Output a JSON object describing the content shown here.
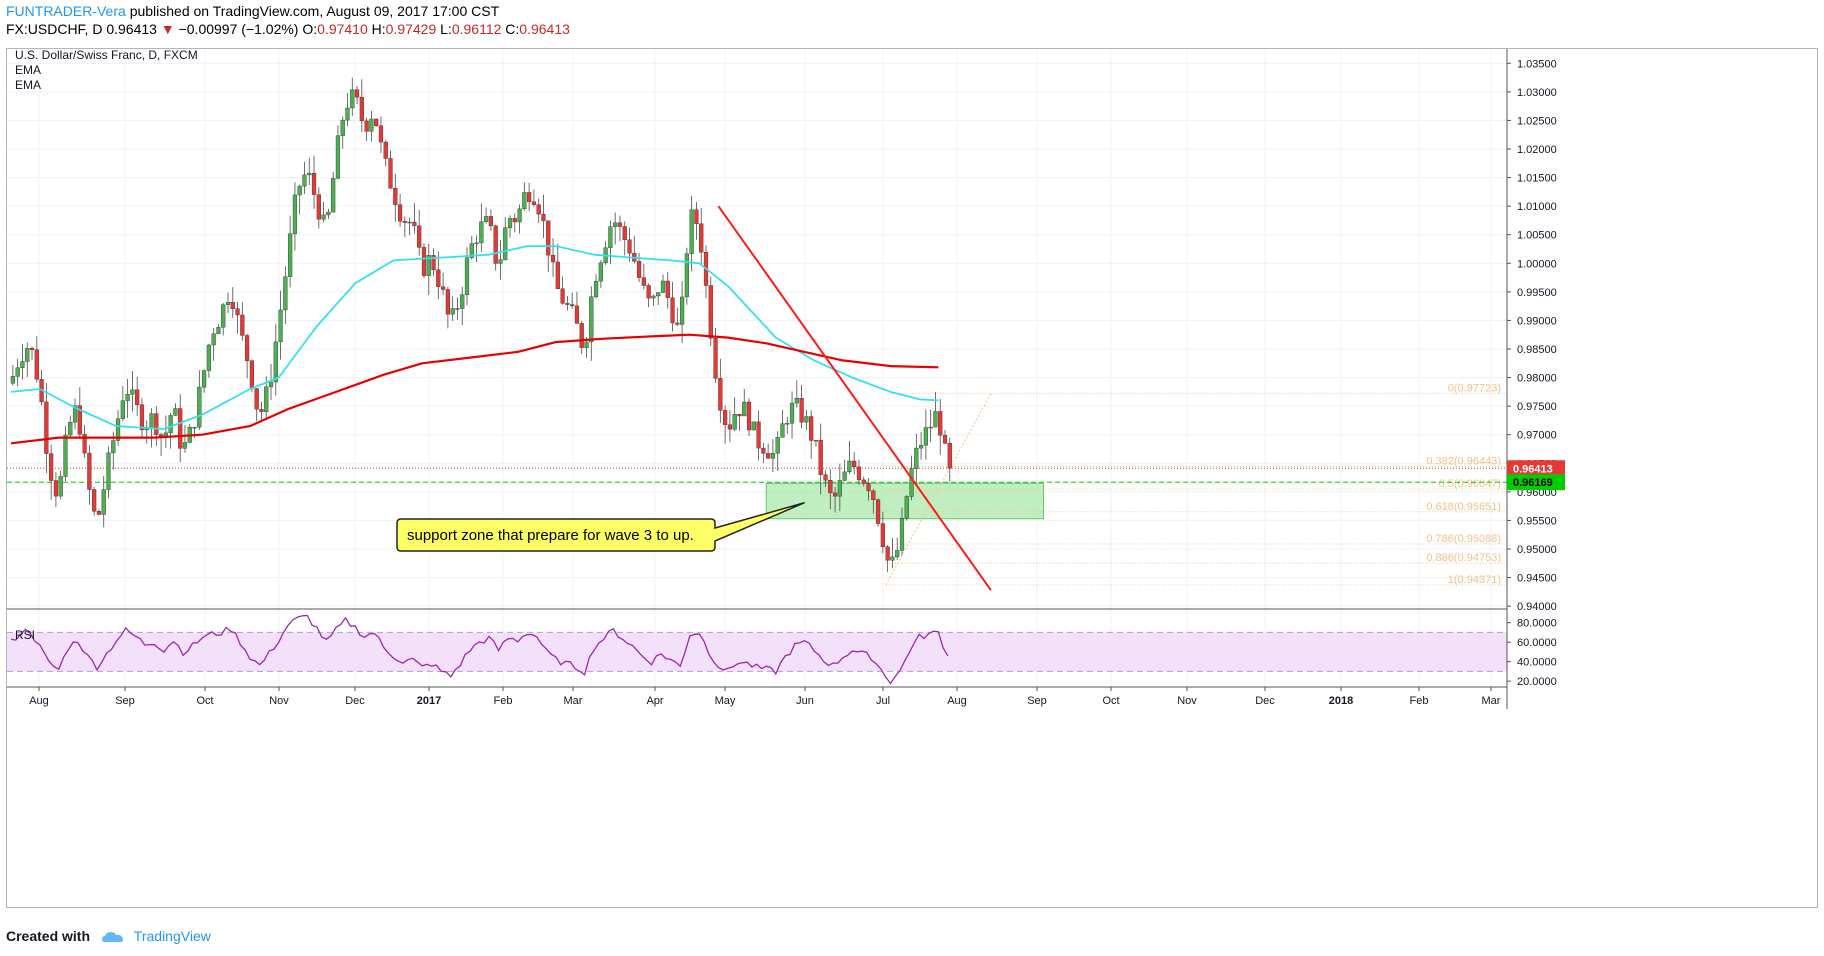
{
  "header": {
    "author": "FUNTRADER-Vera",
    "published": "published on TradingView.com, August 09, 2017 17:00 CST",
    "symbol": "FX:USDCHF, D",
    "last": "0.96413",
    "change_arrow": "▼",
    "change": "−0.00997 (−1.02%)",
    "o_label": "O:",
    "o": "0.97410",
    "h_label": "H:",
    "h": "0.97429",
    "l_label": "L:",
    "l": "0.96112",
    "c_label": "C:",
    "c": "0.96413"
  },
  "legend": {
    "title": "U.S. Dollar/Swiss Franc, D, FXCM",
    "ema1": "EMA",
    "ema2": "EMA",
    "rsi": "RSI"
  },
  "annotation": "support zone that prepare for wave 3 to up.",
  "footer": {
    "created_with": "Created with",
    "brand": "TradingView"
  },
  "colors": {
    "up": "#4caf50",
    "down": "#e53935",
    "ema_fast": "#33e0f0",
    "ema_slow": "#e60000",
    "trendline": "#ff1a1a",
    "zone": "#8ee08e",
    "fib": "#f5c18a",
    "rsi_line": "#9c27b0",
    "rsi_band": "#f3e1fb",
    "price_label": "#e53935",
    "zone_label": "#00cc00"
  },
  "chart_data": {
    "type": "candlestick",
    "title": "U.S. Dollar/Swiss Franc, D, FXCM",
    "ylim": [
      0.9395,
      1.0375
    ],
    "y_ticks": [
      "1.03500",
      "1.03000",
      "1.02500",
      "1.02000",
      "1.01500",
      "1.01000",
      "1.00500",
      "1.00000",
      "0.99500",
      "0.99000",
      "0.98500",
      "0.98000",
      "0.97500",
      "0.97000",
      "0.96500",
      "0.96000",
      "0.95500",
      "0.95000",
      "0.94500",
      "0.94000"
    ],
    "x_ticks": [
      "Aug",
      "Sep",
      "Oct",
      "Nov",
      "Dec",
      "2017",
      "Feb",
      "Mar",
      "Apr",
      "May",
      "Jun",
      "Jul",
      "Aug",
      "Sep",
      "Oct",
      "Nov",
      "Dec",
      "2018",
      "Feb",
      "Mar"
    ],
    "x_bold": [
      "2017",
      "2018"
    ],
    "last_price_label": "0.96413",
    "last_price": 0.96413,
    "support_price_label": "0.96169",
    "support_price": 0.96169,
    "price_path": [
      [
        0,
        0.979
      ],
      [
        2,
        0.984
      ],
      [
        4,
        0.986
      ],
      [
        6,
        0.979
      ],
      [
        8,
        0.965
      ],
      [
        10,
        0.959
      ],
      [
        12,
        0.971
      ],
      [
        14,
        0.975
      ],
      [
        16,
        0.962
      ],
      [
        18,
        0.954
      ],
      [
        20,
        0.963
      ],
      [
        22,
        0.971
      ],
      [
        24,
        0.979
      ],
      [
        26,
        0.975
      ],
      [
        28,
        0.972
      ],
      [
        30,
        0.973
      ],
      [
        32,
        0.969
      ],
      [
        34,
        0.975
      ],
      [
        36,
        0.967
      ],
      [
        38,
        0.971
      ],
      [
        40,
        0.979
      ],
      [
        42,
        0.988
      ],
      [
        44,
        0.991
      ],
      [
        46,
        0.996
      ],
      [
        48,
        0.988
      ],
      [
        50,
        0.982
      ],
      [
        52,
        0.973
      ],
      [
        54,
        0.978
      ],
      [
        56,
        0.989
      ],
      [
        58,
        1.001
      ],
      [
        60,
        1.013
      ],
      [
        62,
        1.016
      ],
      [
        64,
        1.011
      ],
      [
        66,
        1.005
      ],
      [
        68,
        1.018
      ],
      [
        70,
        1.028
      ],
      [
        72,
        1.029
      ],
      [
        74,
        1.024
      ],
      [
        76,
        1.027
      ],
      [
        78,
        1.018
      ],
      [
        80,
        1.013
      ],
      [
        82,
        1.008
      ],
      [
        84,
        1.007
      ],
      [
        86,
        0.999
      ],
      [
        88,
        1.001
      ],
      [
        90,
        0.996
      ],
      [
        92,
        0.989
      ],
      [
        94,
        0.994
      ],
      [
        96,
        1.002
      ],
      [
        98,
        1.006
      ],
      [
        100,
        1.007
      ],
      [
        102,
        0.999
      ],
      [
        104,
        1.008
      ],
      [
        106,
        1.008
      ],
      [
        108,
        1.013
      ],
      [
        110,
        1.012
      ],
      [
        112,
        1.005
      ],
      [
        114,
        0.996
      ],
      [
        116,
        0.993
      ],
      [
        118,
        0.99
      ],
      [
        120,
        0.985
      ],
      [
        122,
        0.997
      ],
      [
        124,
        1.003
      ],
      [
        126,
        1.008
      ],
      [
        128,
        1.005
      ],
      [
        130,
        1.002
      ],
      [
        132,
        0.996
      ],
      [
        134,
        0.992
      ],
      [
        136,
        0.997
      ],
      [
        138,
        0.993
      ],
      [
        140,
        0.987
      ],
      [
        142,
        1.008
      ],
      [
        144,
        1.007
      ],
      [
        146,
        0.992
      ],
      [
        148,
        0.978
      ],
      [
        150,
        0.971
      ],
      [
        152,
        0.975
      ],
      [
        154,
        0.974
      ],
      [
        156,
        0.969
      ],
      [
        158,
        0.968
      ],
      [
        160,
        0.966
      ],
      [
        162,
        0.973
      ],
      [
        164,
        0.975
      ],
      [
        166,
        0.973
      ],
      [
        168,
        0.969
      ],
      [
        170,
        0.962
      ],
      [
        172,
        0.958
      ],
      [
        174,
        0.962
      ],
      [
        176,
        0.965
      ],
      [
        178,
        0.963
      ],
      [
        180,
        0.961
      ],
      [
        182,
        0.954
      ],
      [
        184,
        0.946
      ],
      [
        186,
        0.951
      ],
      [
        188,
        0.962
      ],
      [
        190,
        0.968
      ],
      [
        192,
        0.971
      ],
      [
        194,
        0.974
      ],
      [
        196,
        0.9641
      ]
    ],
    "ema_fast_path": [
      [
        0,
        0.9775
      ],
      [
        6,
        0.978
      ],
      [
        14,
        0.9745
      ],
      [
        22,
        0.9715
      ],
      [
        32,
        0.971
      ],
      [
        40,
        0.9735
      ],
      [
        50,
        0.978
      ],
      [
        56,
        0.98
      ],
      [
        64,
        0.989
      ],
      [
        72,
        0.9965
      ],
      [
        80,
        1.0005
      ],
      [
        90,
        1.001
      ],
      [
        100,
        1.0015
      ],
      [
        108,
        1.003
      ],
      [
        114,
        1.003
      ],
      [
        122,
        1.0015
      ],
      [
        130,
        1.001
      ],
      [
        138,
        1.0005
      ],
      [
        144,
        1.0
      ],
      [
        150,
        0.996
      ],
      [
        160,
        0.987
      ],
      [
        168,
        0.983
      ],
      [
        176,
        0.98
      ],
      [
        184,
        0.9775
      ],
      [
        190,
        0.9762
      ],
      [
        194,
        0.976
      ]
    ],
    "ema_slow_path": [
      [
        0,
        0.9685
      ],
      [
        10,
        0.9695
      ],
      [
        20,
        0.9695
      ],
      [
        30,
        0.9695
      ],
      [
        40,
        0.97
      ],
      [
        50,
        0.9715
      ],
      [
        58,
        0.9745
      ],
      [
        68,
        0.9775
      ],
      [
        78,
        0.9805
      ],
      [
        86,
        0.9825
      ],
      [
        96,
        0.9835
      ],
      [
        106,
        0.9845
      ],
      [
        114,
        0.9862
      ],
      [
        124,
        0.9868
      ],
      [
        134,
        0.9872
      ],
      [
        142,
        0.9875
      ],
      [
        150,
        0.987
      ],
      [
        158,
        0.986
      ],
      [
        166,
        0.9845
      ],
      [
        174,
        0.983
      ],
      [
        184,
        0.982
      ],
      [
        194,
        0.9818
      ]
    ],
    "fib_levels": [
      {
        "label": "0(0.97723)",
        "value": 0.97723
      },
      {
        "label": "0.382(0.96443)",
        "value": 0.96443
      },
      {
        "label": "0.5(0.96047)",
        "value": 0.96047
      },
      {
        "label": "0.618(0.95651)",
        "value": 0.95651
      },
      {
        "label": "0.786(0.95088)",
        "value": 0.95088
      },
      {
        "label": "0.886(0.94753)",
        "value": 0.94753
      },
      {
        "label": "1(0.94371)",
        "value": 0.94371
      }
    ],
    "trendline": [
      [
        148,
        1.01
      ],
      [
        205,
        0.9428
      ]
    ],
    "support_zone": {
      "x0": 158,
      "x1": 216,
      "y0": 0.9553,
      "y1": 0.9615
    },
    "rsi": {
      "y_ticks": [
        "80.0000",
        "60.0000",
        "40.0000",
        "20.0000"
      ],
      "ylim": [
        14,
        92
      ],
      "band": [
        30,
        70
      ],
      "values": [
        [
          0,
          60
        ],
        [
          2,
          70
        ],
        [
          4,
          72
        ],
        [
          6,
          55
        ],
        [
          8,
          38
        ],
        [
          10,
          32
        ],
        [
          12,
          55
        ],
        [
          14,
          62
        ],
        [
          16,
          45
        ],
        [
          18,
          35
        ],
        [
          20,
          48
        ],
        [
          22,
          62
        ],
        [
          24,
          72
        ],
        [
          26,
          66
        ],
        [
          28,
          58
        ],
        [
          30,
          60
        ],
        [
          32,
          52
        ],
        [
          34,
          62
        ],
        [
          36,
          50
        ],
        [
          38,
          56
        ],
        [
          40,
          65
        ],
        [
          42,
          68
        ],
        [
          44,
          70
        ],
        [
          46,
          74
        ],
        [
          48,
          60
        ],
        [
          50,
          45
        ],
        [
          52,
          36
        ],
        [
          54,
          48
        ],
        [
          56,
          62
        ],
        [
          58,
          78
        ],
        [
          60,
          84
        ],
        [
          62,
          86
        ],
        [
          64,
          74
        ],
        [
          66,
          60
        ],
        [
          68,
          72
        ],
        [
          70,
          82
        ],
        [
          72,
          75
        ],
        [
          74,
          66
        ],
        [
          76,
          70
        ],
        [
          78,
          54
        ],
        [
          80,
          46
        ],
        [
          82,
          40
        ],
        [
          84,
          42
        ],
        [
          86,
          34
        ],
        [
          88,
          38
        ],
        [
          90,
          30
        ],
        [
          92,
          25
        ],
        [
          94,
          38
        ],
        [
          96,
          52
        ],
        [
          98,
          60
        ],
        [
          100,
          64
        ],
        [
          102,
          52
        ],
        [
          104,
          64
        ],
        [
          106,
          62
        ],
        [
          108,
          70
        ],
        [
          110,
          66
        ],
        [
          112,
          50
        ],
        [
          114,
          42
        ],
        [
          116,
          38
        ],
        [
          118,
          35
        ],
        [
          120,
          30
        ],
        [
          122,
          55
        ],
        [
          124,
          64
        ],
        [
          126,
          72
        ],
        [
          128,
          64
        ],
        [
          130,
          56
        ],
        [
          132,
          46
        ],
        [
          134,
          40
        ],
        [
          136,
          48
        ],
        [
          138,
          42
        ],
        [
          140,
          35
        ],
        [
          142,
          68
        ],
        [
          144,
          70
        ],
        [
          146,
          50
        ],
        [
          148,
          36
        ],
        [
          150,
          30
        ],
        [
          152,
          40
        ],
        [
          154,
          38
        ],
        [
          156,
          34
        ],
        [
          158,
          32
        ],
        [
          160,
          30
        ],
        [
          162,
          45
        ],
        [
          164,
          56
        ],
        [
          166,
          60
        ],
        [
          168,
          52
        ],
        [
          170,
          42
        ],
        [
          172,
          36
        ],
        [
          174,
          45
        ],
        [
          176,
          52
        ],
        [
          178,
          48
        ],
        [
          180,
          45
        ],
        [
          182,
          32
        ],
        [
          184,
          20
        ],
        [
          186,
          30
        ],
        [
          188,
          52
        ],
        [
          190,
          65
        ],
        [
          192,
          68
        ],
        [
          194,
          70
        ],
        [
          196,
          45
        ]
      ]
    }
  }
}
